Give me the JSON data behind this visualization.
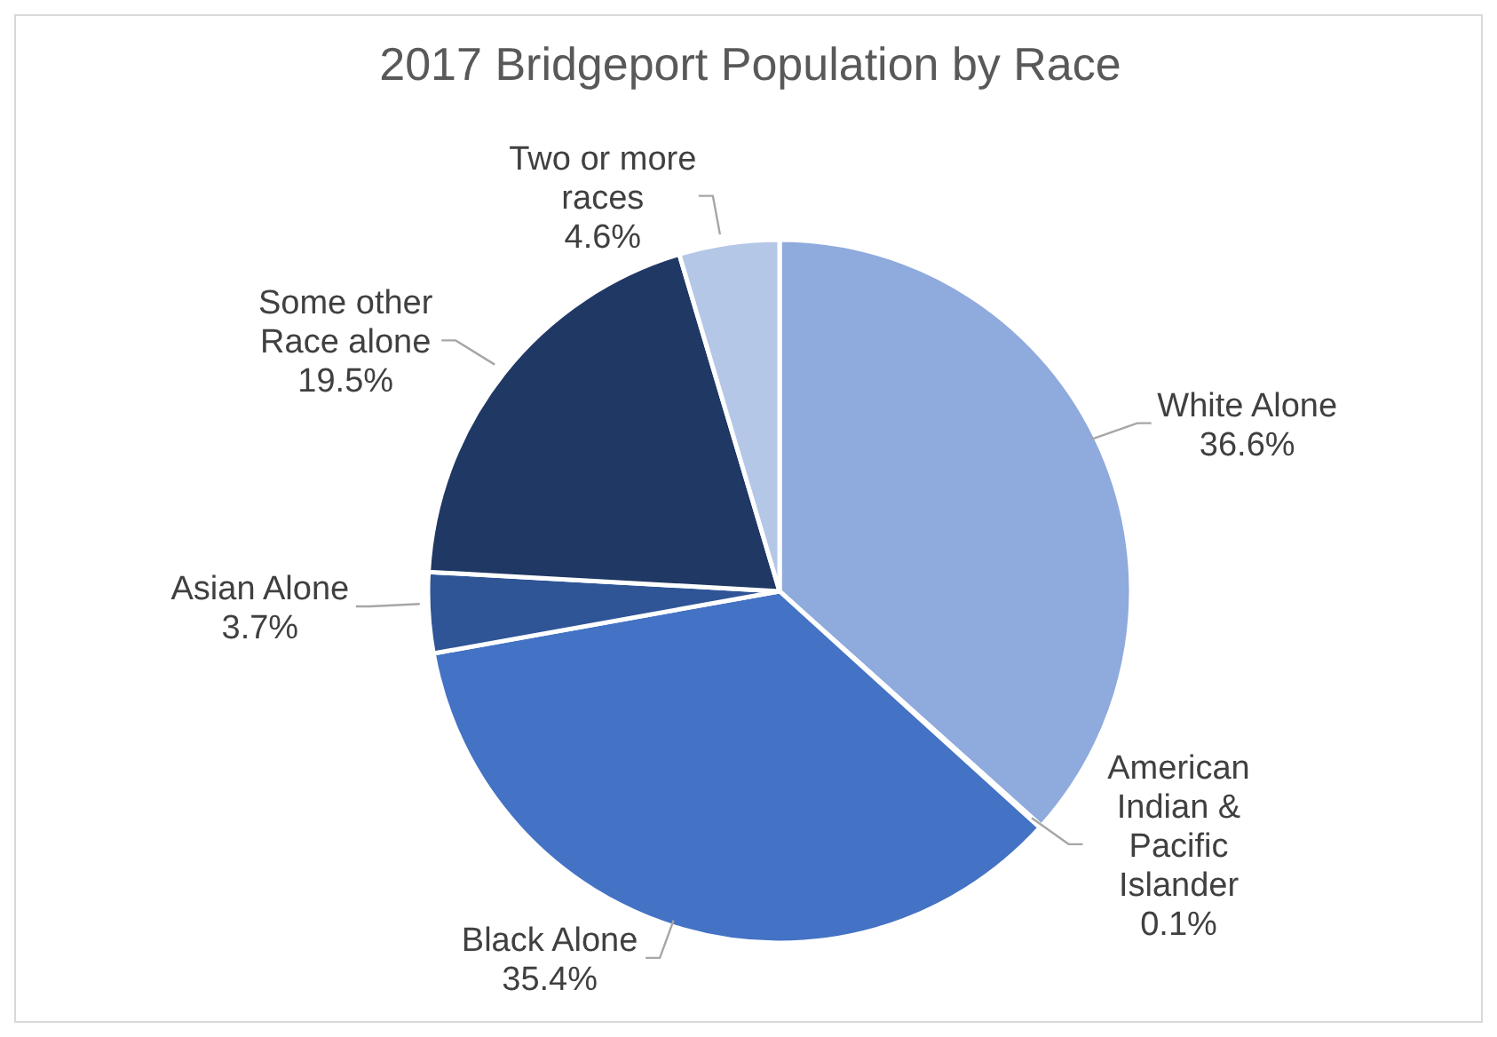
{
  "chart_data": {
    "type": "pie",
    "title": "2017 Bridgeport Population by Race",
    "categories": [
      "White Alone",
      "American Indian & Pacific Islander",
      "Black Alone",
      "Asian Alone",
      "Some other Race alone",
      "Two or more races"
    ],
    "values": [
      36.6,
      0.1,
      35.4,
      3.7,
      19.5,
      4.6
    ],
    "value_labels": [
      "36.6%",
      "0.1%",
      "35.4%",
      "3.7%",
      "19.5%",
      "4.6%"
    ],
    "colors": [
      "#8faadc",
      "#2f5597",
      "#4472c4",
      "#2f5597",
      "#203864",
      "#b4c7e7"
    ]
  }
}
